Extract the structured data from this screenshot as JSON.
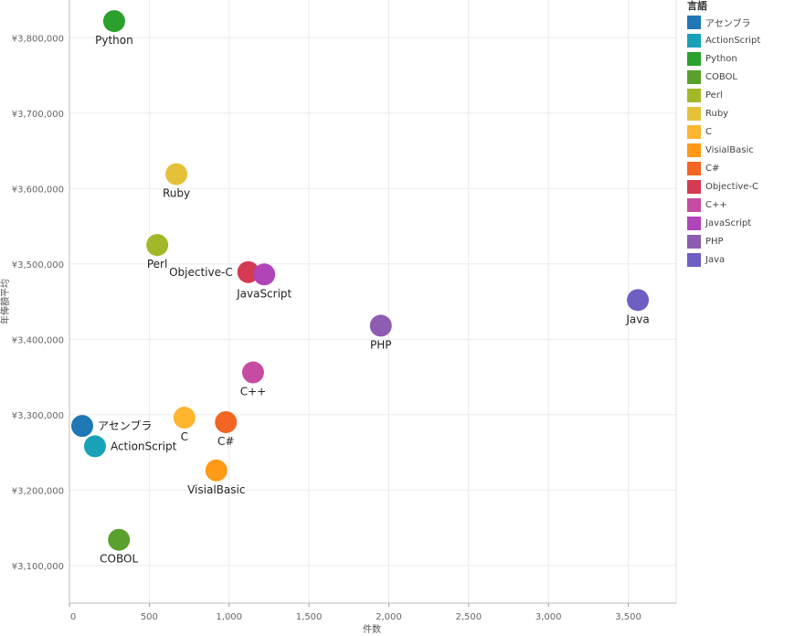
{
  "chart_data": {
    "type": "scatter",
    "xlabel": "件数",
    "ylabel": "年俸額平均",
    "xlim": [
      0,
      3800
    ],
    "ylim": [
      3050000,
      3850000
    ],
    "x_ticks": [
      0,
      500,
      1000,
      1500,
      2000,
      2500,
      3000,
      3500
    ],
    "y_ticks": [
      3100000,
      3200000,
      3300000,
      3400000,
      3500000,
      3600000,
      3700000,
      3800000
    ],
    "x_tick_labels": [
      "0",
      "500",
      "1,000",
      "1,500",
      "2,000",
      "2,500",
      "3,000",
      "3,500"
    ],
    "y_tick_labels": [
      "¥3,100,000",
      "¥3,200,000",
      "¥3,300,000",
      "¥3,400,000",
      "¥3,500,000",
      "¥3,600,000",
      "¥3,700,000",
      "¥3,800,000"
    ],
    "grid": true,
    "legend": {
      "title": "言語",
      "placement": "right"
    },
    "points": [
      {
        "name": "アセンブラ",
        "x": 80,
        "y": 3285000,
        "color": "#1f77b4",
        "label_pos": "right"
      },
      {
        "name": "ActionScript",
        "x": 160,
        "y": 3258000,
        "color": "#17a2b8",
        "label_pos": "right"
      },
      {
        "name": "Python",
        "x": 280,
        "y": 3822000,
        "color": "#2ca02c",
        "label_pos": "below"
      },
      {
        "name": "COBOL",
        "x": 310,
        "y": 3134000,
        "color": "#5aa02c",
        "label_pos": "below"
      },
      {
        "name": "Perl",
        "x": 550,
        "y": 3525000,
        "color": "#a4b728",
        "label_pos": "below"
      },
      {
        "name": "Ruby",
        "x": 670,
        "y": 3619000,
        "color": "#e5c13a",
        "label_pos": "below"
      },
      {
        "name": "C",
        "x": 720,
        "y": 3296000,
        "color": "#ffb52e",
        "label_pos": "below"
      },
      {
        "name": "VisialBasic",
        "x": 920,
        "y": 3226000,
        "color": "#ff9a18",
        "label_pos": "below"
      },
      {
        "name": "C#",
        "x": 980,
        "y": 3290000,
        "color": "#f26522",
        "label_pos": "below"
      },
      {
        "name": "Objective-C",
        "x": 1120,
        "y": 3489000,
        "color": "#d43a52",
        "label_pos": "left"
      },
      {
        "name": "C++",
        "x": 1150,
        "y": 3356000,
        "color": "#c64ba2",
        "label_pos": "below"
      },
      {
        "name": "JavaScript",
        "x": 1220,
        "y": 3486000,
        "color": "#b044b8",
        "label_pos": "below"
      },
      {
        "name": "PHP",
        "x": 1950,
        "y": 3418000,
        "color": "#8e5cb2",
        "label_pos": "below"
      },
      {
        "name": "Java",
        "x": 3560,
        "y": 3452000,
        "color": "#6e5fc4",
        "label_pos": "below"
      }
    ]
  }
}
